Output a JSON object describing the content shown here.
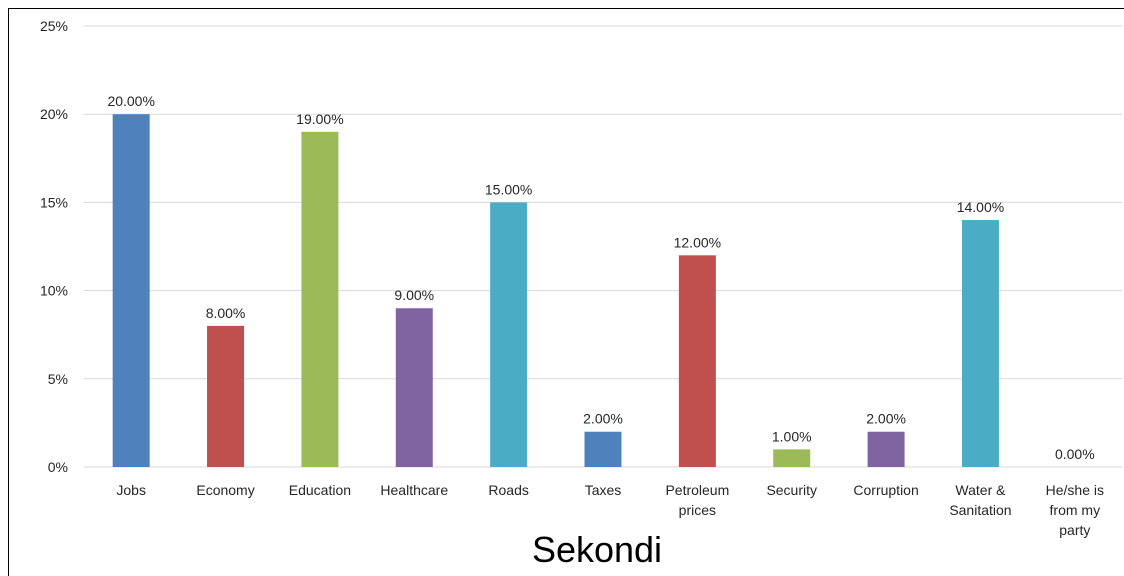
{
  "chart_data": {
    "type": "bar",
    "title": "Sekondi",
    "xlabel": "",
    "ylabel": "",
    "ylim": [
      0,
      25
    ],
    "y_ticks": [
      "0%",
      "5%",
      "10%",
      "15%",
      "20%",
      "25%"
    ],
    "y_tick_values": [
      0,
      5,
      10,
      15,
      20,
      25
    ],
    "grid": true,
    "legend": "none",
    "categories": [
      [
        "Jobs"
      ],
      [
        "Economy"
      ],
      [
        "Education"
      ],
      [
        "Healthcare"
      ],
      [
        "Roads"
      ],
      [
        "Taxes"
      ],
      [
        "Petroleum",
        "prices"
      ],
      [
        "Security"
      ],
      [
        "Corruption"
      ],
      [
        "Water &",
        "Sanitation"
      ],
      [
        "He/she is",
        "from my",
        "party"
      ]
    ],
    "values": [
      20,
      8,
      19,
      9,
      15,
      2,
      12,
      1,
      2,
      14,
      0
    ],
    "data_labels": [
      "20.00%",
      "8.00%",
      "19.00%",
      "9.00%",
      "15.00%",
      "2.00%",
      "12.00%",
      "1.00%",
      "2.00%",
      "14.00%",
      "0.00%"
    ],
    "colors": [
      "#4f81bd",
      "#c0504d",
      "#9bbb59",
      "#8064a2",
      "#4bacc6",
      "#4f81bd",
      "#c0504d",
      "#9bbb59",
      "#8064a2",
      "#4bacc6",
      "#f79646"
    ]
  }
}
